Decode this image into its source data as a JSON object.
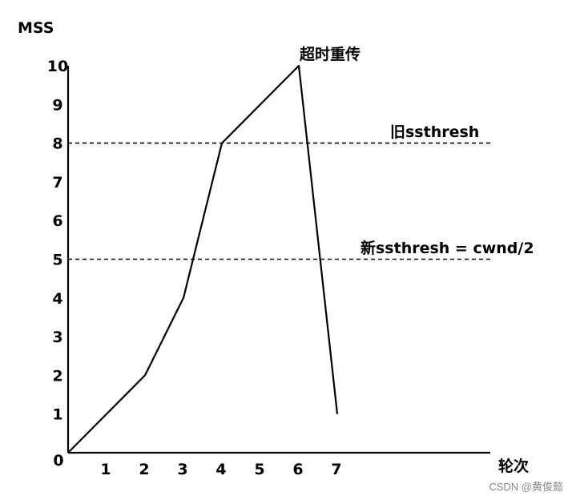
{
  "chart_data": {
    "type": "line",
    "ylabel": "MSS",
    "xlabel": "轮次",
    "x_ticks": [
      "1",
      "2",
      "3",
      "4",
      "5",
      "6",
      "7"
    ],
    "y_ticks": [
      "1",
      "2",
      "3",
      "4",
      "5",
      "6",
      "7",
      "8",
      "9",
      "10"
    ],
    "origin_label": "0",
    "xlim": [
      0,
      11
    ],
    "ylim": [
      0,
      10
    ],
    "grid": false,
    "series": [
      {
        "x": [
          0,
          1,
          2,
          3,
          4,
          5,
          6,
          7
        ],
        "y": [
          0,
          1,
          2,
          4,
          8,
          9,
          10,
          1
        ],
        "color": "#000000"
      }
    ],
    "reference_lines": [
      {
        "y": 8,
        "label": "旧ssthresh",
        "style": "dashed"
      },
      {
        "y": 5,
        "label": "新ssthresh = cwnd/2",
        "style": "dashed"
      }
    ],
    "annotations": [
      {
        "x": 6,
        "y": 10,
        "text": "超时重传"
      }
    ]
  },
  "watermark": "CSDN @黄俊懿"
}
